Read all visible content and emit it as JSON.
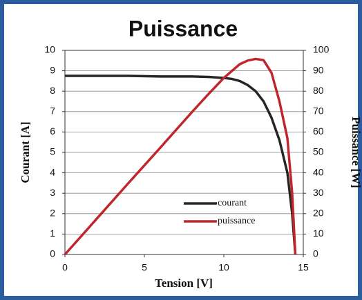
{
  "chart_data": {
    "type": "line",
    "title": "Puissance",
    "xlabel": "Tension [V]",
    "ylabel": "Courant [A]",
    "y2label": "Puissance [W]",
    "xlim": [
      0,
      15
    ],
    "xticks": [
      0,
      5,
      10,
      15
    ],
    "ylim": [
      0,
      10
    ],
    "yticks": [
      0,
      1,
      2,
      3,
      4,
      5,
      6,
      7,
      8,
      9,
      10
    ],
    "y2lim": [
      0,
      100
    ],
    "y2ticks": [
      0,
      10,
      20,
      30,
      40,
      50,
      60,
      70,
      80,
      90,
      100
    ],
    "grid": true,
    "legend": "lower right",
    "series": [
      {
        "name": "courant",
        "color": "#262626",
        "x": [
          0,
          2,
          4,
          6,
          8,
          9,
          10,
          10.5,
          11,
          11.5,
          12,
          12.5,
          13,
          13.5,
          14,
          14.3,
          14.5
        ],
        "values": [
          8.75,
          8.75,
          8.75,
          8.72,
          8.72,
          8.7,
          8.65,
          8.6,
          8.5,
          8.3,
          8.0,
          7.5,
          6.7,
          5.6,
          4.0,
          2.0,
          0
        ]
      },
      {
        "name": "puissance",
        "color": "#c0262d",
        "axis": "y2",
        "x": [
          0,
          2,
          4,
          6,
          8,
          9,
          10,
          11,
          11.5,
          12,
          12.5,
          13,
          13.5,
          14,
          14.3,
          14.5
        ],
        "values": [
          0,
          17.5,
          35,
          52.3,
          69.8,
          78.3,
          86.5,
          93.2,
          95,
          95.8,
          95.2,
          89,
          75,
          57,
          30,
          0
        ]
      }
    ]
  }
}
